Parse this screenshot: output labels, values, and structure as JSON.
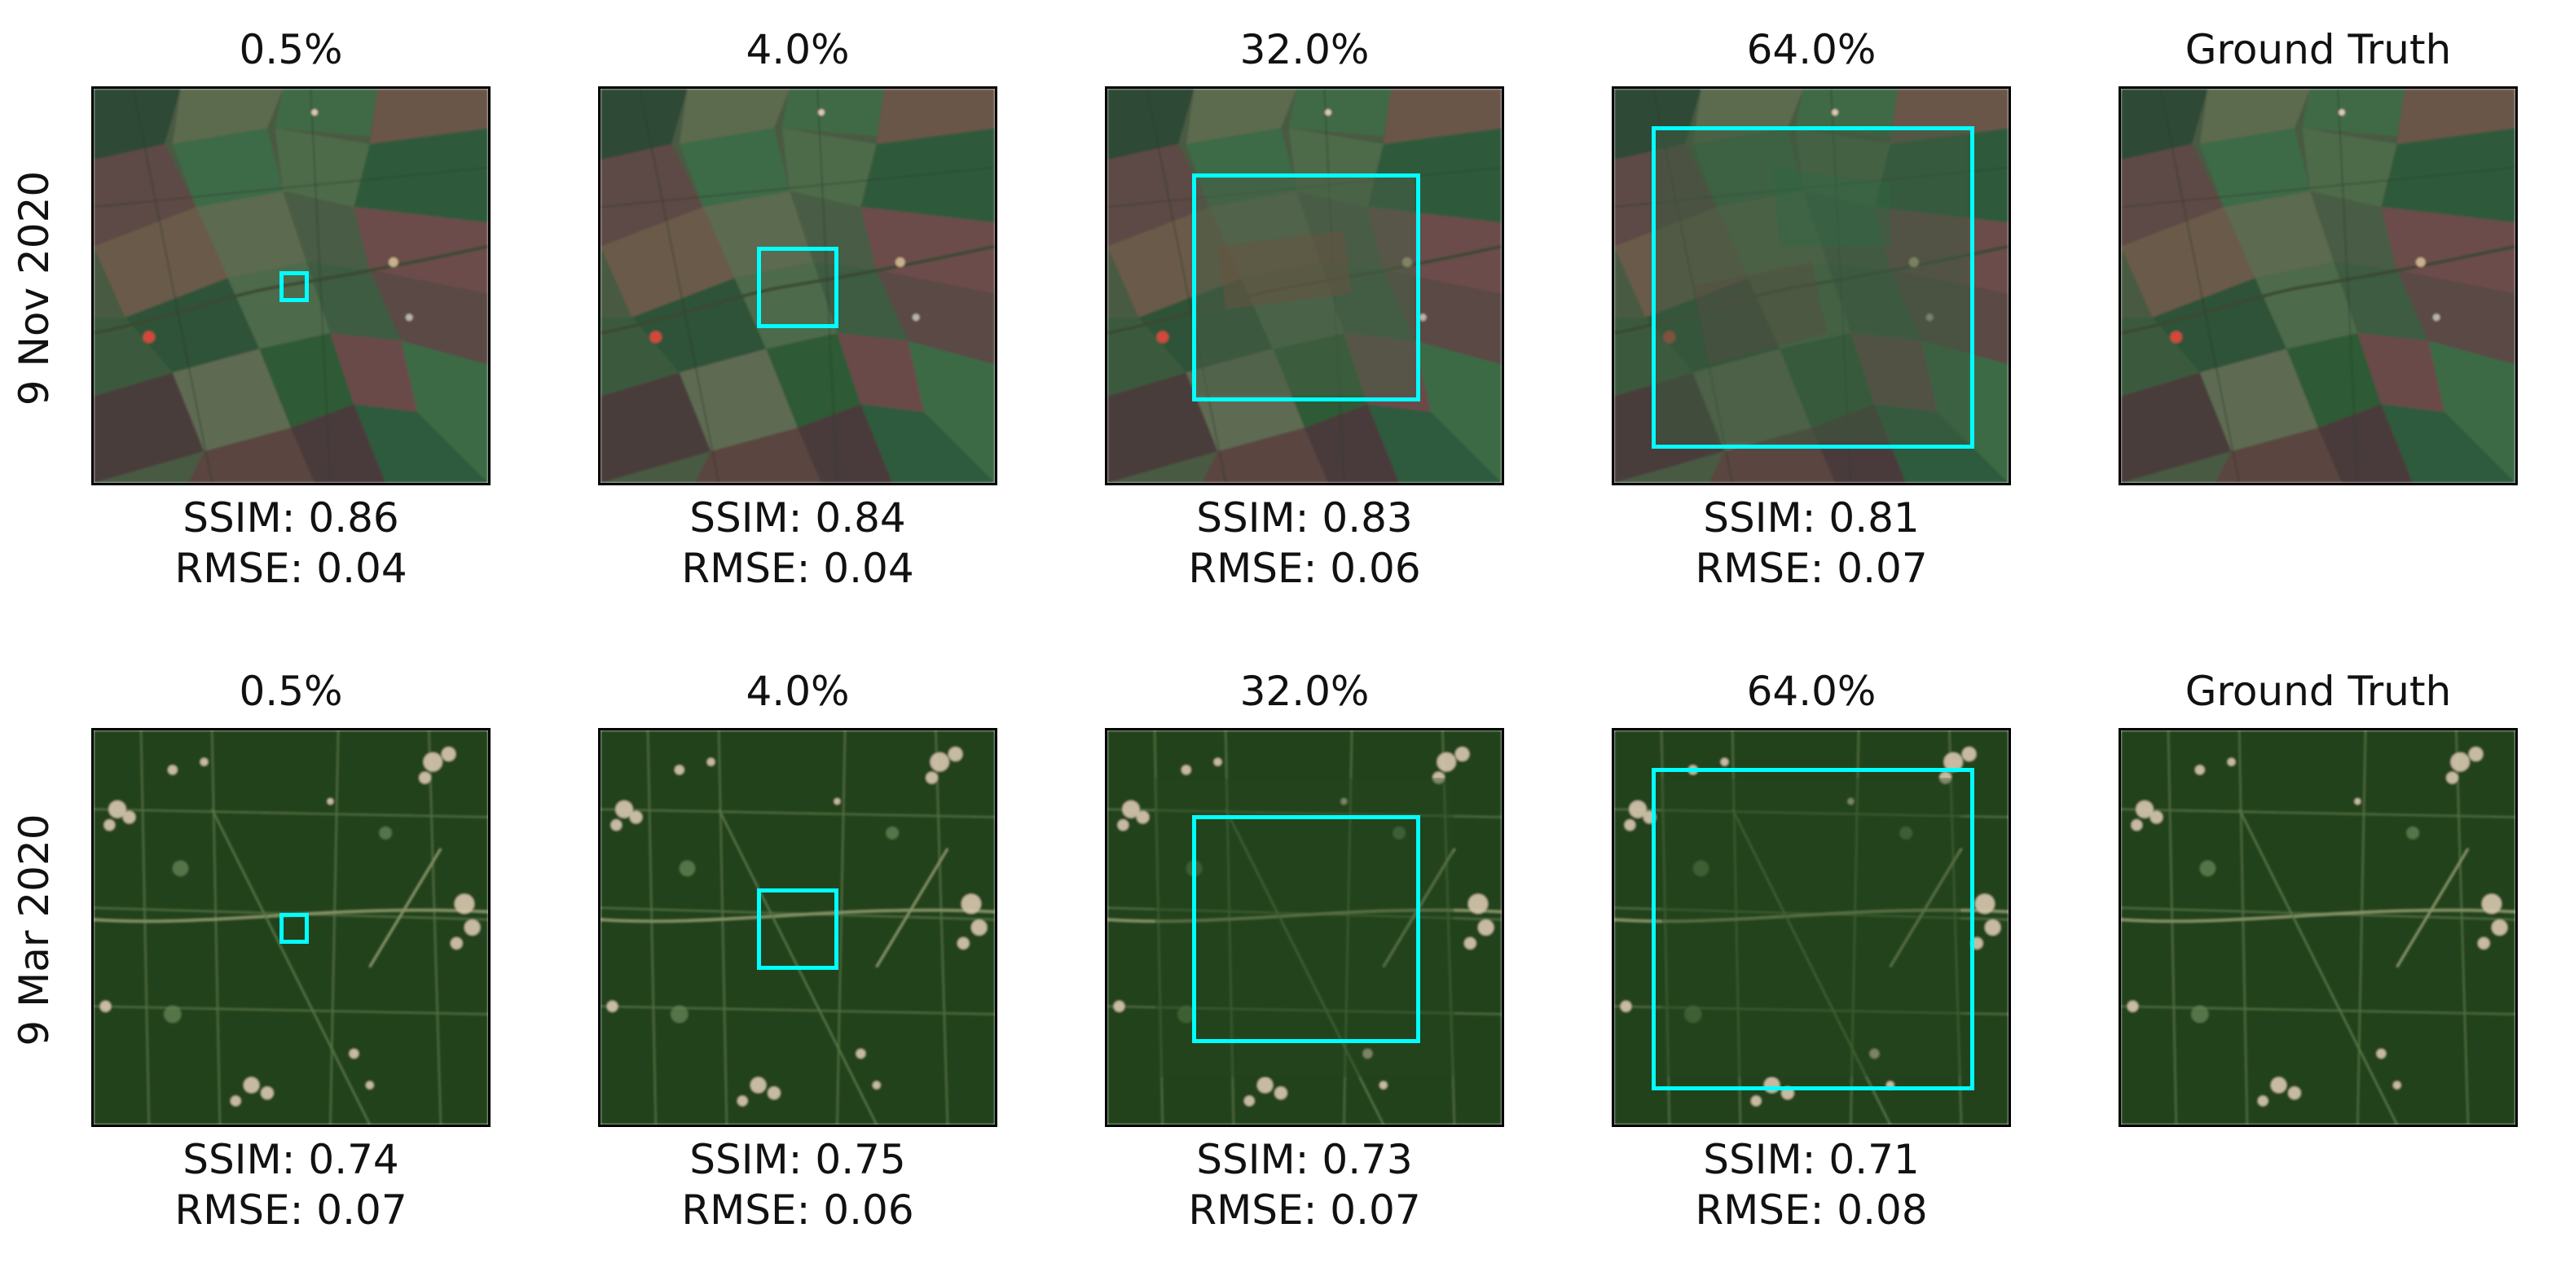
{
  "rows": [
    {
      "label": "9 Nov 2020",
      "scene": "farmland-autumn",
      "panels": [
        {
          "title": "0.5%",
          "ssim": "SSIM: 0.86",
          "rmse": "RMSE: 0.04",
          "has_mask": true
        },
        {
          "title": "4.0%",
          "ssim": "SSIM: 0.84",
          "rmse": "RMSE: 0.04",
          "has_mask": true
        },
        {
          "title": "32.0%",
          "ssim": "SSIM: 0.83",
          "rmse": "RMSE: 0.06",
          "has_mask": true
        },
        {
          "title": "64.0%",
          "ssim": "SSIM: 0.81",
          "rmse": "RMSE: 0.07",
          "has_mask": true
        },
        {
          "title": "Ground Truth",
          "ssim": "",
          "rmse": "",
          "has_mask": false
        }
      ]
    },
    {
      "label": "9 Mar 2020",
      "scene": "farmland-spring",
      "panels": [
        {
          "title": "0.5%",
          "ssim": "SSIM: 0.74",
          "rmse": "RMSE: 0.07",
          "has_mask": true
        },
        {
          "title": "4.0%",
          "ssim": "SSIM: 0.75",
          "rmse": "RMSE: 0.06",
          "has_mask": true
        },
        {
          "title": "32.0%",
          "ssim": "SSIM: 0.73",
          "rmse": "RMSE: 0.07",
          "has_mask": true
        },
        {
          "title": "64.0%",
          "ssim": "SSIM: 0.71",
          "rmse": "RMSE: 0.08",
          "has_mask": true
        },
        {
          "title": "Ground Truth",
          "ssim": "",
          "rmse": "",
          "has_mask": false
        }
      ]
    }
  ],
  "colors": {
    "mask_outline": "#00ffff",
    "frame": "#000000"
  }
}
